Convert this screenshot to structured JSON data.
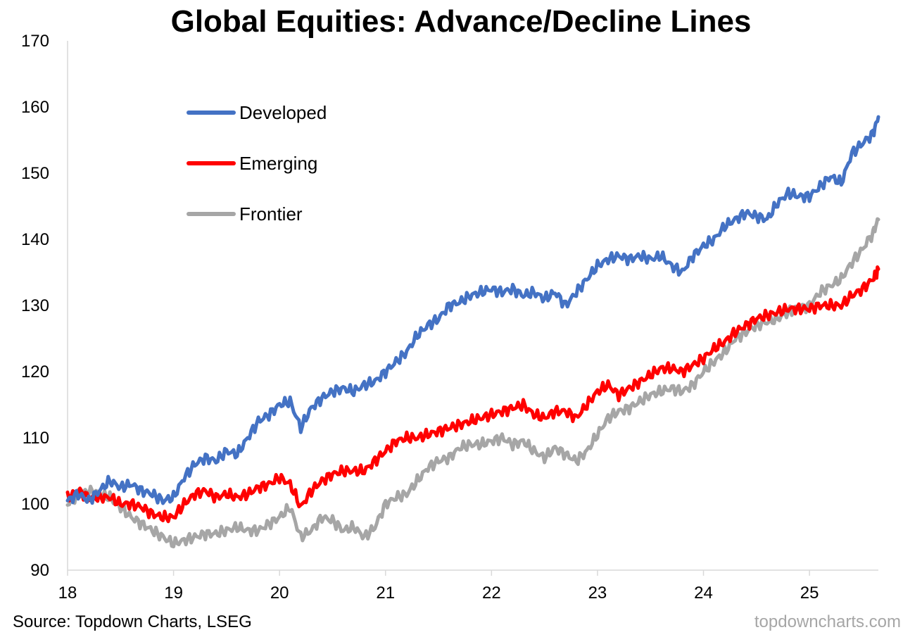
{
  "chart_data": {
    "type": "line",
    "title": "Global Equities: Advance/Decline Lines",
    "xlabel": "",
    "ylabel": "",
    "ylim": [
      90,
      170
    ],
    "xlim": [
      18,
      25.65
    ],
    "y_ticks": [
      90,
      100,
      110,
      120,
      130,
      140,
      150,
      160,
      170
    ],
    "x_ticks": [
      18,
      19,
      20,
      21,
      22,
      23,
      24,
      25
    ],
    "x_tick_labels": [
      "18",
      "19",
      "20",
      "21",
      "22",
      "23",
      "24",
      "25"
    ],
    "legend_position": "top-left",
    "grid": false,
    "series": [
      {
        "name": "Developed",
        "color": "#4472c4",
        "x": [
          18.0,
          18.1,
          18.2,
          18.3,
          18.4,
          18.5,
          18.6,
          18.7,
          18.8,
          18.9,
          19.0,
          19.1,
          19.2,
          19.3,
          19.4,
          19.5,
          19.6,
          19.7,
          19.8,
          19.9,
          20.0,
          20.1,
          20.2,
          20.3,
          20.4,
          20.5,
          20.6,
          20.7,
          20.8,
          20.9,
          21.0,
          21.1,
          21.2,
          21.3,
          21.4,
          21.5,
          21.6,
          21.7,
          21.8,
          21.9,
          22.0,
          22.1,
          22.2,
          22.3,
          22.4,
          22.5,
          22.6,
          22.7,
          22.8,
          22.9,
          23.0,
          23.1,
          23.2,
          23.3,
          23.4,
          23.5,
          23.6,
          23.7,
          23.8,
          23.9,
          24.0,
          24.1,
          24.2,
          24.3,
          24.4,
          24.5,
          24.6,
          24.7,
          24.8,
          24.9,
          25.0,
          25.1,
          25.2,
          25.3,
          25.4,
          25.5,
          25.6,
          25.65
        ],
        "values": [
          100.5,
          101.5,
          100.5,
          102.0,
          103.5,
          102.5,
          103.0,
          102.0,
          101.5,
          100.5,
          101.0,
          104.0,
          106.0,
          107.0,
          106.5,
          108.0,
          107.5,
          110.0,
          112.5,
          113.5,
          115.0,
          115.5,
          111.5,
          114.5,
          116.0,
          117.0,
          117.5,
          117.0,
          118.0,
          118.5,
          120.0,
          121.5,
          123.0,
          125.5,
          127.0,
          128.0,
          130.0,
          130.5,
          131.5,
          132.0,
          132.5,
          132.0,
          132.5,
          131.5,
          132.0,
          131.0,
          132.0,
          130.0,
          132.0,
          134.0,
          136.0,
          137.0,
          137.5,
          137.0,
          137.5,
          137.0,
          137.5,
          136.0,
          135.0,
          137.5,
          139.0,
          140.0,
          142.0,
          143.0,
          144.0,
          143.5,
          143.0,
          145.5,
          147.0,
          146.5,
          146.5,
          148.0,
          149.5,
          148.5,
          153.0,
          154.5,
          156.0,
          158.5
        ]
      },
      {
        "name": "Emerging",
        "color": "#ff0000",
        "x": [
          18.0,
          18.1,
          18.2,
          18.3,
          18.4,
          18.5,
          18.6,
          18.7,
          18.8,
          18.9,
          19.0,
          19.1,
          19.2,
          19.3,
          19.4,
          19.5,
          19.6,
          19.7,
          19.8,
          19.9,
          20.0,
          20.1,
          20.2,
          20.3,
          20.4,
          20.5,
          20.6,
          20.7,
          20.8,
          20.9,
          21.0,
          21.1,
          21.2,
          21.3,
          21.4,
          21.5,
          21.6,
          21.7,
          21.8,
          21.9,
          22.0,
          22.1,
          22.2,
          22.3,
          22.4,
          22.5,
          22.6,
          22.7,
          22.8,
          22.9,
          23.0,
          23.1,
          23.2,
          23.3,
          23.4,
          23.5,
          23.6,
          23.7,
          23.8,
          23.9,
          24.0,
          24.1,
          24.2,
          24.3,
          24.4,
          24.5,
          24.6,
          24.7,
          24.8,
          24.9,
          25.0,
          25.1,
          25.2,
          25.3,
          25.4,
          25.5,
          25.6,
          25.65
        ],
        "values": [
          101.0,
          102.0,
          101.0,
          101.0,
          101.0,
          100.0,
          100.0,
          99.5,
          98.5,
          98.0,
          98.0,
          100.0,
          101.5,
          102.0,
          101.0,
          101.5,
          101.0,
          101.5,
          102.5,
          103.0,
          104.0,
          103.0,
          99.5,
          102.0,
          103.5,
          104.5,
          105.0,
          105.0,
          105.0,
          106.5,
          108.0,
          109.5,
          110.0,
          110.0,
          110.5,
          111.0,
          111.5,
          112.0,
          112.5,
          113.0,
          113.5,
          114.0,
          114.5,
          115.0,
          113.5,
          113.0,
          114.0,
          114.0,
          113.0,
          115.0,
          117.0,
          118.0,
          116.5,
          117.5,
          118.5,
          119.5,
          120.5,
          120.5,
          120.0,
          121.0,
          122.0,
          123.5,
          124.5,
          126.0,
          127.0,
          128.0,
          128.5,
          129.0,
          129.5,
          129.5,
          129.5,
          130.0,
          130.0,
          130.0,
          131.5,
          132.5,
          134.0,
          135.5
        ]
      },
      {
        "name": "Frontier",
        "color": "#a6a6a6",
        "x": [
          18.0,
          18.1,
          18.2,
          18.3,
          18.4,
          18.5,
          18.6,
          18.7,
          18.8,
          18.9,
          19.0,
          19.1,
          19.2,
          19.3,
          19.4,
          19.5,
          19.6,
          19.7,
          19.8,
          19.9,
          20.0,
          20.1,
          20.2,
          20.3,
          20.4,
          20.5,
          20.6,
          20.7,
          20.8,
          20.9,
          21.0,
          21.1,
          21.2,
          21.3,
          21.4,
          21.5,
          21.6,
          21.7,
          21.8,
          21.9,
          22.0,
          22.1,
          22.2,
          22.3,
          22.4,
          22.5,
          22.6,
          22.7,
          22.8,
          22.9,
          23.0,
          23.1,
          23.2,
          23.3,
          23.4,
          23.5,
          23.6,
          23.7,
          23.8,
          23.9,
          24.0,
          24.1,
          24.2,
          24.3,
          24.4,
          24.5,
          24.6,
          24.7,
          24.8,
          24.9,
          25.0,
          25.1,
          25.2,
          25.3,
          25.4,
          25.5,
          25.6,
          25.65
        ],
        "values": [
          100.0,
          101.5,
          102.0,
          101.5,
          101.0,
          99.5,
          98.0,
          97.0,
          96.0,
          95.0,
          94.0,
          94.5,
          95.0,
          95.5,
          95.5,
          96.0,
          96.5,
          96.0,
          96.0,
          97.0,
          98.0,
          99.5,
          95.0,
          96.0,
          98.0,
          97.5,
          96.0,
          96.5,
          95.0,
          96.5,
          100.0,
          101.0,
          101.5,
          103.5,
          105.5,
          106.5,
          107.0,
          108.5,
          109.0,
          109.0,
          109.5,
          110.0,
          109.0,
          109.5,
          108.0,
          107.0,
          108.5,
          107.5,
          106.5,
          108.0,
          110.5,
          113.0,
          114.0,
          114.5,
          115.5,
          116.5,
          117.0,
          117.5,
          117.0,
          118.0,
          120.0,
          121.5,
          123.0,
          125.0,
          126.0,
          127.0,
          127.5,
          128.0,
          129.0,
          129.5,
          130.0,
          132.0,
          133.0,
          134.0,
          136.5,
          138.5,
          141.0,
          143.0
        ]
      }
    ]
  },
  "footer": {
    "source": "Source: Topdown Charts, LSEG",
    "watermark": "topdowncharts.com"
  }
}
